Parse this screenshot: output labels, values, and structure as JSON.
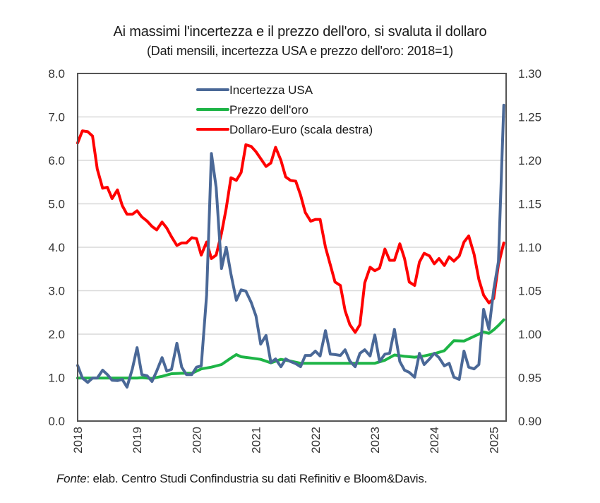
{
  "header": {
    "title": "Ai massimi l'incertezza e il prezzo dell'oro, si svaluta il dollaro",
    "subtitle": "(Dati mensili, incertezza USA e prezzo dell'oro: 2018=1)"
  },
  "footer": {
    "source_label": "Fonte",
    "source_text": ": elab. Centro Studi Confindustria su dati Refinitiv e Bloom&Davis."
  },
  "chart_data": {
    "type": "line",
    "title": "Ai massimi l'incertezza e il prezzo dell'oro, si svaluta il dollaro",
    "subtitle": "(Dati mensili, incertezza USA e prezzo dell'oro: 2018=1)",
    "xlabel": "",
    "ylabel": "",
    "y2label": "",
    "xlim": [
      2018,
      2025.22
    ],
    "ylim": [
      0,
      8
    ],
    "y2lim": [
      0.9,
      1.3
    ],
    "grid": true,
    "legend_position": "top-center",
    "x_ticks": [
      "2018",
      "2019",
      "2020",
      "2021",
      "2022",
      "2023",
      "2024",
      "2025"
    ],
    "y_ticks": [
      "0.0",
      "1.0",
      "2.0",
      "3.0",
      "4.0",
      "5.0",
      "6.0",
      "7.0",
      "8.0"
    ],
    "y2_ticks": [
      "0.90",
      "0.95",
      "1.00",
      "1.05",
      "1.10",
      "1.15",
      "1.20",
      "1.25",
      "1.30"
    ],
    "series": [
      {
        "name": "Incertezza USA",
        "axis": "left",
        "color": "#4a6897",
        "points": [
          [
            2018.0,
            1.28
          ],
          [
            2018.08,
            0.99
          ],
          [
            2018.17,
            0.89
          ],
          [
            2018.25,
            0.99
          ],
          [
            2018.33,
            0.99
          ],
          [
            2018.42,
            1.17
          ],
          [
            2018.5,
            1.07
          ],
          [
            2018.58,
            0.94
          ],
          [
            2018.67,
            0.93
          ],
          [
            2018.75,
            0.96
          ],
          [
            2018.83,
            0.78
          ],
          [
            2018.92,
            1.2
          ],
          [
            2019.0,
            1.69
          ],
          [
            2019.08,
            1.07
          ],
          [
            2019.17,
            1.04
          ],
          [
            2019.25,
            0.91
          ],
          [
            2019.33,
            1.15
          ],
          [
            2019.42,
            1.46
          ],
          [
            2019.5,
            1.15
          ],
          [
            2019.58,
            1.19
          ],
          [
            2019.67,
            1.79
          ],
          [
            2019.75,
            1.24
          ],
          [
            2019.83,
            1.07
          ],
          [
            2019.92,
            1.07
          ],
          [
            2020.0,
            1.24
          ],
          [
            2020.08,
            1.27
          ],
          [
            2020.17,
            2.9
          ],
          [
            2020.25,
            6.16
          ],
          [
            2020.33,
            5.38
          ],
          [
            2020.42,
            3.51
          ],
          [
            2020.5,
            4.0
          ],
          [
            2020.58,
            3.38
          ],
          [
            2020.67,
            2.78
          ],
          [
            2020.75,
            3.02
          ],
          [
            2020.83,
            2.99
          ],
          [
            2020.92,
            2.73
          ],
          [
            2021.0,
            2.42
          ],
          [
            2021.08,
            1.77
          ],
          [
            2021.17,
            1.97
          ],
          [
            2021.25,
            1.35
          ],
          [
            2021.33,
            1.43
          ],
          [
            2021.42,
            1.25
          ],
          [
            2021.5,
            1.43
          ],
          [
            2021.58,
            1.37
          ],
          [
            2021.67,
            1.32
          ],
          [
            2021.75,
            1.25
          ],
          [
            2021.83,
            1.51
          ],
          [
            2021.92,
            1.51
          ],
          [
            2022.0,
            1.61
          ],
          [
            2022.08,
            1.5
          ],
          [
            2022.17,
            2.08
          ],
          [
            2022.25,
            1.54
          ],
          [
            2022.33,
            1.53
          ],
          [
            2022.42,
            1.51
          ],
          [
            2022.5,
            1.64
          ],
          [
            2022.58,
            1.38
          ],
          [
            2022.67,
            1.25
          ],
          [
            2022.75,
            1.56
          ],
          [
            2022.83,
            1.64
          ],
          [
            2022.92,
            1.5
          ],
          [
            2023.0,
            1.98
          ],
          [
            2023.08,
            1.37
          ],
          [
            2023.17,
            1.54
          ],
          [
            2023.25,
            1.56
          ],
          [
            2023.33,
            2.11
          ],
          [
            2023.42,
            1.37
          ],
          [
            2023.5,
            1.17
          ],
          [
            2023.58,
            1.12
          ],
          [
            2023.67,
            1.01
          ],
          [
            2023.75,
            1.56
          ],
          [
            2023.83,
            1.3
          ],
          [
            2023.92,
            1.43
          ],
          [
            2024.0,
            1.56
          ],
          [
            2024.08,
            1.46
          ],
          [
            2024.17,
            1.27
          ],
          [
            2024.25,
            1.33
          ],
          [
            2024.33,
            1.01
          ],
          [
            2024.42,
            0.96
          ],
          [
            2024.5,
            1.61
          ],
          [
            2024.58,
            1.24
          ],
          [
            2024.67,
            1.2
          ],
          [
            2024.75,
            1.3
          ],
          [
            2024.83,
            2.57
          ],
          [
            2024.92,
            2.11
          ],
          [
            2025.0,
            3.02
          ],
          [
            2025.08,
            3.67
          ],
          [
            2025.17,
            7.27
          ]
        ]
      },
      {
        "name": "Prezzo dell'oro",
        "axis": "left",
        "color": "#1db446",
        "points": [
          [
            2018.0,
            0.99
          ],
          [
            2018.25,
            0.99
          ],
          [
            2018.5,
            0.99
          ],
          [
            2018.75,
            0.99
          ],
          [
            2019.0,
            0.99
          ],
          [
            2019.08,
            1.0
          ],
          [
            2019.25,
            0.98
          ],
          [
            2019.42,
            1.03
          ],
          [
            2019.58,
            1.09
          ],
          [
            2019.75,
            1.1
          ],
          [
            2019.92,
            1.1
          ],
          [
            2020.08,
            1.2
          ],
          [
            2020.25,
            1.24
          ],
          [
            2020.42,
            1.3
          ],
          [
            2020.58,
            1.45
          ],
          [
            2020.67,
            1.53
          ],
          [
            2020.75,
            1.48
          ],
          [
            2020.92,
            1.45
          ],
          [
            2021.08,
            1.42
          ],
          [
            2021.25,
            1.34
          ],
          [
            2021.42,
            1.42
          ],
          [
            2021.58,
            1.38
          ],
          [
            2021.75,
            1.33
          ],
          [
            2022.0,
            1.33
          ],
          [
            2022.25,
            1.33
          ],
          [
            2022.5,
            1.33
          ],
          [
            2022.75,
            1.33
          ],
          [
            2023.0,
            1.33
          ],
          [
            2023.17,
            1.4
          ],
          [
            2023.33,
            1.52
          ],
          [
            2023.5,
            1.49
          ],
          [
            2023.67,
            1.47
          ],
          [
            2023.83,
            1.5
          ],
          [
            2024.0,
            1.55
          ],
          [
            2024.17,
            1.62
          ],
          [
            2024.33,
            1.85
          ],
          [
            2024.5,
            1.84
          ],
          [
            2024.67,
            1.95
          ],
          [
            2024.83,
            2.05
          ],
          [
            2024.92,
            2.02
          ],
          [
            2025.0,
            2.1
          ],
          [
            2025.08,
            2.2
          ],
          [
            2025.17,
            2.33
          ]
        ]
      },
      {
        "name": "Dollaro-Euro (scala destra)",
        "axis": "right",
        "color": "#ff0000",
        "points": [
          [
            2018.0,
            1.22
          ],
          [
            2018.08,
            1.234
          ],
          [
            2018.17,
            1.233
          ],
          [
            2018.25,
            1.228
          ],
          [
            2018.33,
            1.19
          ],
          [
            2018.42,
            1.168
          ],
          [
            2018.5,
            1.169
          ],
          [
            2018.58,
            1.156
          ],
          [
            2018.67,
            1.166
          ],
          [
            2018.75,
            1.148
          ],
          [
            2018.83,
            1.138
          ],
          [
            2018.92,
            1.138
          ],
          [
            2019.0,
            1.142
          ],
          [
            2019.08,
            1.135
          ],
          [
            2019.17,
            1.13
          ],
          [
            2019.25,
            1.124
          ],
          [
            2019.33,
            1.12
          ],
          [
            2019.42,
            1.129
          ],
          [
            2019.5,
            1.122
          ],
          [
            2019.58,
            1.112
          ],
          [
            2019.67,
            1.102
          ],
          [
            2019.75,
            1.105
          ],
          [
            2019.83,
            1.105
          ],
          [
            2019.92,
            1.111
          ],
          [
            2020.0,
            1.11
          ],
          [
            2020.08,
            1.091
          ],
          [
            2020.17,
            1.106
          ],
          [
            2020.25,
            1.087
          ],
          [
            2020.33,
            1.091
          ],
          [
            2020.42,
            1.116
          ],
          [
            2020.5,
            1.145
          ],
          [
            2020.58,
            1.18
          ],
          [
            2020.67,
            1.177
          ],
          [
            2020.75,
            1.186
          ],
          [
            2020.83,
            1.218
          ],
          [
            2020.92,
            1.216
          ],
          [
            2021.0,
            1.21
          ],
          [
            2021.08,
            1.202
          ],
          [
            2021.17,
            1.193
          ],
          [
            2021.25,
            1.197
          ],
          [
            2021.33,
            1.215
          ],
          [
            2021.42,
            1.2
          ],
          [
            2021.5,
            1.181
          ],
          [
            2021.58,
            1.177
          ],
          [
            2021.67,
            1.176
          ],
          [
            2021.75,
            1.16
          ],
          [
            2021.83,
            1.14
          ],
          [
            2021.92,
            1.13
          ],
          [
            2022.0,
            1.132
          ],
          [
            2022.08,
            1.132
          ],
          [
            2022.17,
            1.1
          ],
          [
            2022.25,
            1.08
          ],
          [
            2022.33,
            1.06
          ],
          [
            2022.42,
            1.056
          ],
          [
            2022.5,
            1.027
          ],
          [
            2022.58,
            1.011
          ],
          [
            2022.67,
            1.002
          ],
          [
            2022.75,
            1.011
          ],
          [
            2022.83,
            1.059
          ],
          [
            2022.92,
            1.077
          ],
          [
            2023.0,
            1.073
          ],
          [
            2023.08,
            1.076
          ],
          [
            2023.17,
            1.098
          ],
          [
            2023.25,
            1.085
          ],
          [
            2023.33,
            1.085
          ],
          [
            2023.42,
            1.104
          ],
          [
            2023.5,
            1.087
          ],
          [
            2023.58,
            1.06
          ],
          [
            2023.67,
            1.056
          ],
          [
            2023.75,
            1.083
          ],
          [
            2023.83,
            1.093
          ],
          [
            2023.92,
            1.09
          ],
          [
            2024.0,
            1.081
          ],
          [
            2024.08,
            1.087
          ],
          [
            2024.17,
            1.079
          ],
          [
            2024.25,
            1.089
          ],
          [
            2024.33,
            1.084
          ],
          [
            2024.42,
            1.09
          ],
          [
            2024.5,
            1.106
          ],
          [
            2024.58,
            1.113
          ],
          [
            2024.67,
            1.092
          ],
          [
            2024.75,
            1.063
          ],
          [
            2024.83,
            1.045
          ],
          [
            2024.92,
            1.036
          ],
          [
            2025.0,
            1.041
          ],
          [
            2025.08,
            1.08
          ],
          [
            2025.17,
            1.105
          ]
        ]
      }
    ]
  }
}
